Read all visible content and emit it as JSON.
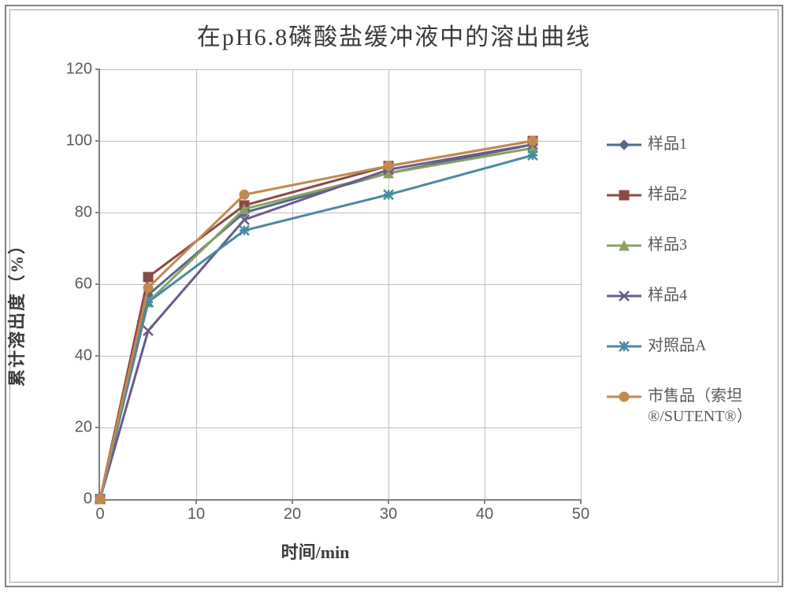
{
  "title": "在pH6.8磷酸盐缓冲液中的溶出曲线",
  "ylabel": "累计溶出度（%）",
  "xlabel": "时间/min",
  "chart": {
    "type": "line",
    "background_color": "#ffffff",
    "border_color": "#808080",
    "grid_color": "#bfbfbf",
    "axis_color": "#808080",
    "tick_fontsize": 20,
    "tick_color": "#5a5a5a",
    "title_fontsize": 30,
    "label_fontsize": 22,
    "label_fontweight": "bold",
    "line_width": 3,
    "marker_size": 12,
    "xlim": [
      0,
      50
    ],
    "ylim": [
      0,
      120
    ],
    "xticks": [
      0,
      10,
      20,
      30,
      40,
      50
    ],
    "yticks": [
      0,
      20,
      40,
      60,
      80,
      100,
      120
    ],
    "x": [
      0,
      5,
      15,
      30,
      45
    ],
    "series": [
      {
        "name": "样品1",
        "color": "#506a8c",
        "marker": "diamond",
        "y": [
          0,
          57,
          80,
          91,
          99
        ]
      },
      {
        "name": "样品2",
        "color": "#8a4a46",
        "marker": "square",
        "y": [
          0,
          62,
          82,
          93,
          100
        ]
      },
      {
        "name": "样品3",
        "color": "#8aa060",
        "marker": "triangle",
        "y": [
          0,
          55,
          81,
          91,
          98
        ]
      },
      {
        "name": "样品4",
        "color": "#6a5a8a",
        "marker": "x",
        "y": [
          0,
          47,
          78,
          92,
          99
        ]
      },
      {
        "name": "对照品A",
        "color": "#4a8aa0",
        "marker": "asterisk",
        "y": [
          0,
          55,
          75,
          85,
          96
        ]
      },
      {
        "name": "市售品（索坦®/SUTENT®）",
        "color": "#c08a50",
        "marker": "circle",
        "y": [
          0,
          59,
          85,
          93,
          100
        ]
      }
    ]
  },
  "legend": {
    "entries": [
      "样品1",
      "样品2",
      "样品3",
      "样品4",
      "对照品A",
      "市售品（索坦®/SUTENT®）"
    ]
  }
}
